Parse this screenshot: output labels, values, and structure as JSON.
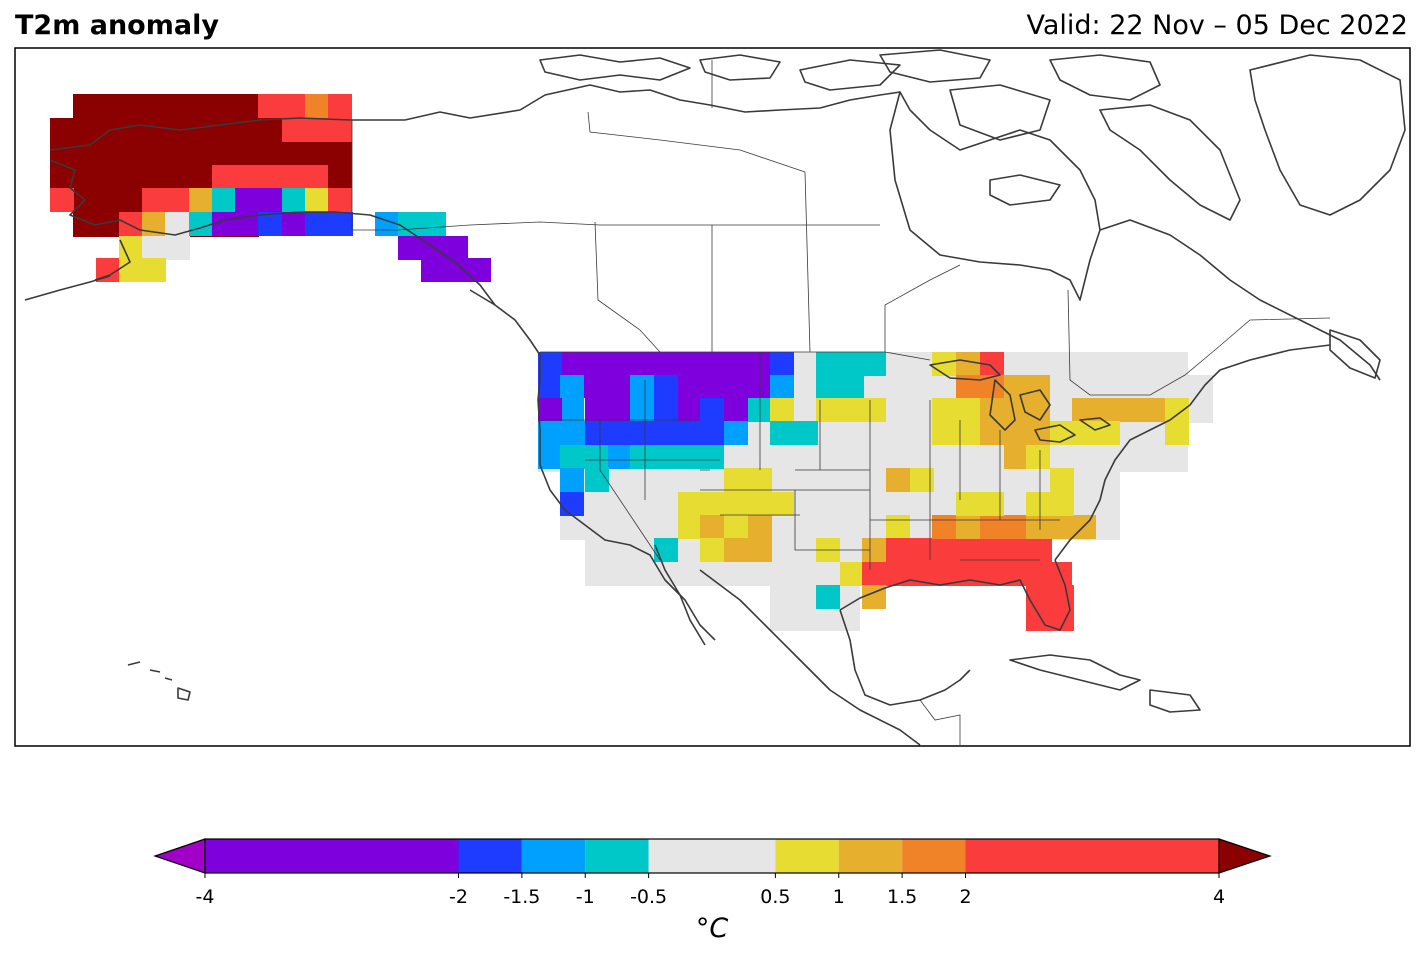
{
  "title": "T2m anomaly",
  "valid_text": "Valid: 22 Nov – 05 Dec 2022",
  "colorbar": {
    "unit": "°C",
    "tick_labels": [
      "-4",
      "-2",
      "-1.5",
      "-1",
      "-0.5",
      "0.5",
      "1",
      "1.5",
      "2",
      "4"
    ],
    "levels": [
      -4,
      -2,
      -1.5,
      -1,
      -0.5,
      0.5,
      1,
      1.5,
      2,
      4
    ],
    "colors": [
      "#7d00dd",
      "#1e3cff",
      "#00a0ff",
      "#00c8c8",
      "#e6e6e6",
      "#e6dc32",
      "#e6af2d",
      "#f08228",
      "#fa3c3c"
    ],
    "under_color": "#a000c8",
    "over_color": "#8b0000",
    "extend": "both"
  },
  "map_data": {
    "region": "North America",
    "variable": "2 m temperature anomaly",
    "regions": [
      {
        "area": "Alaska interior and north",
        "category": "above 4"
      },
      {
        "area": "Alaska southwest",
        "category": "2 to 4"
      },
      {
        "area": "Alaska south-central",
        "category": "-4 to -2"
      },
      {
        "area": "Alaska panhandle",
        "category": "-4 to -2"
      },
      {
        "area": "Montana / Idaho",
        "category": "-4 to -2"
      },
      {
        "area": "Pacific Northwest",
        "category": "-2 to -1"
      },
      {
        "area": "California coast / Nevada",
        "category": "-1 to -0.5"
      },
      {
        "area": "Dakotas",
        "category": "-1 to -0.5"
      },
      {
        "area": "Central Plains",
        "category": "-0.5 to 0.5"
      },
      {
        "area": "Southwest (AZ / NM)",
        "category": "0.5 to 1.5"
      },
      {
        "area": "Texas",
        "category": "-0.5 to 0.5"
      },
      {
        "area": "Gulf Coast and Florida",
        "category": "2 to 4"
      },
      {
        "area": "Southeast interior",
        "category": "1.5 to 2"
      },
      {
        "area": "Great Lakes / Ohio Valley",
        "category": "0.5 to 2"
      },
      {
        "area": "Northeast / New England",
        "category": "0.5 to 1.5"
      }
    ]
  }
}
